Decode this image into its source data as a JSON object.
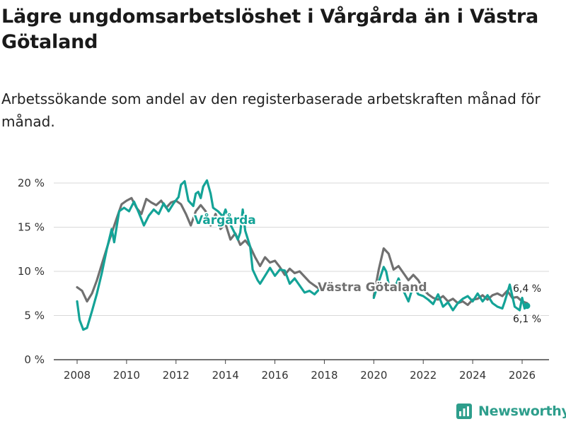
{
  "title": "Lägre ungdomsarbetslöshet i Vårgårda än i Västra Götaland",
  "subtitle": "Arbetssökande som andel av den registerbaserade arbetskraften månad för månad.",
  "brand": {
    "name": "Newsworthy"
  },
  "colors": {
    "vargarda": "#14a397",
    "vastra": "#707070",
    "grid": "#d9d9d9",
    "axis": "#444444"
  },
  "chart_data": {
    "type": "line",
    "title": "Lägre ungdomsarbetslöshet i Vårgårda än i Västra Götaland",
    "xlabel": "",
    "ylabel": "",
    "xlim": [
      2007.5,
      2026.8
    ],
    "ylim": [
      0,
      20
    ],
    "y_ticks": [
      0,
      5,
      10,
      15,
      20
    ],
    "y_tick_labels": [
      "0 %",
      "5 %",
      "10 %",
      "15 %",
      "20 %"
    ],
    "x_ticks": [
      2008,
      2010,
      2012,
      2014,
      2016,
      2018,
      2020,
      2022,
      2024,
      2026
    ],
    "x_tick_labels": [
      "2008",
      "2010",
      "2012",
      "2014",
      "2016",
      "2018",
      "2020",
      "2022",
      "2024",
      "2026"
    ],
    "grid": true,
    "series": [
      {
        "name": "Västra Götaland",
        "label": "Västra Götaland",
        "end_label": "6,4 %",
        "points": [
          [
            2008.0,
            8.2
          ],
          [
            2008.2,
            7.8
          ],
          [
            2008.4,
            6.6
          ],
          [
            2008.6,
            7.5
          ],
          [
            2008.8,
            9.0
          ],
          [
            2009.0,
            10.8
          ],
          [
            2009.3,
            13.5
          ],
          [
            2009.6,
            16.0
          ],
          [
            2009.8,
            17.6
          ],
          [
            2010.0,
            18.0
          ],
          [
            2010.2,
            18.3
          ],
          [
            2010.4,
            17.2
          ],
          [
            2010.6,
            16.5
          ],
          [
            2010.8,
            18.2
          ],
          [
            2011.0,
            17.8
          ],
          [
            2011.2,
            17.5
          ],
          [
            2011.4,
            18.0
          ],
          [
            2011.6,
            17.2
          ],
          [
            2011.8,
            17.8
          ],
          [
            2012.0,
            18.0
          ],
          [
            2012.2,
            17.6
          ],
          [
            2012.4,
            16.5
          ],
          [
            2012.6,
            15.2
          ],
          [
            2012.8,
            16.8
          ],
          [
            2013.0,
            17.5
          ],
          [
            2013.2,
            16.8
          ],
          [
            2013.4,
            15.2
          ],
          [
            2013.6,
            16.5
          ],
          [
            2013.8,
            14.8
          ],
          [
            2014.0,
            15.4
          ],
          [
            2014.2,
            13.6
          ],
          [
            2014.4,
            14.3
          ],
          [
            2014.6,
            13.0
          ],
          [
            2014.8,
            13.5
          ],
          [
            2015.0,
            12.8
          ],
          [
            2015.2,
            11.6
          ],
          [
            2015.4,
            10.6
          ],
          [
            2015.6,
            11.6
          ],
          [
            2015.8,
            11.0
          ],
          [
            2016.0,
            11.2
          ],
          [
            2016.2,
            10.5
          ],
          [
            2016.4,
            9.6
          ],
          [
            2016.6,
            10.3
          ],
          [
            2016.8,
            9.8
          ],
          [
            2017.0,
            10.0
          ],
          [
            2017.2,
            9.4
          ],
          [
            2017.4,
            8.8
          ],
          [
            2017.6,
            8.4
          ],
          [
            2017.8,
            8.0
          ]
        ]
      },
      {
        "name": "Västra Götaland (forts.)",
        "points": [
          [
            2020.0,
            7.2
          ],
          [
            2020.2,
            10.2
          ],
          [
            2020.4,
            12.6
          ],
          [
            2020.6,
            12.0
          ],
          [
            2020.8,
            10.2
          ],
          [
            2021.0,
            10.6
          ],
          [
            2021.2,
            9.8
          ],
          [
            2021.4,
            9.0
          ],
          [
            2021.6,
            9.6
          ],
          [
            2021.8,
            9.0
          ],
          [
            2022.0,
            8.0
          ],
          [
            2022.2,
            7.4
          ],
          [
            2022.4,
            7.0
          ],
          [
            2022.6,
            6.8
          ],
          [
            2022.8,
            7.2
          ],
          [
            2023.0,
            6.6
          ],
          [
            2023.2,
            6.9
          ],
          [
            2023.4,
            6.4
          ],
          [
            2023.6,
            6.6
          ],
          [
            2023.8,
            6.2
          ],
          [
            2024.0,
            6.8
          ],
          [
            2024.2,
            6.9
          ],
          [
            2024.4,
            7.3
          ],
          [
            2024.6,
            6.8
          ],
          [
            2024.8,
            7.3
          ],
          [
            2025.0,
            7.5
          ],
          [
            2025.2,
            7.2
          ],
          [
            2025.4,
            7.8
          ],
          [
            2025.6,
            7.0
          ],
          [
            2025.8,
            7.1
          ],
          [
            2026.0,
            6.6
          ],
          [
            2026.2,
            6.4
          ]
        ]
      },
      {
        "name": "Vårgårda",
        "label": "Vårgårda",
        "end_label": "6,1 %",
        "points": [
          [
            2008.0,
            6.6
          ],
          [
            2008.1,
            4.5
          ],
          [
            2008.25,
            3.4
          ],
          [
            2008.4,
            3.6
          ],
          [
            2008.6,
            5.5
          ],
          [
            2008.8,
            7.5
          ],
          [
            2009.0,
            9.8
          ],
          [
            2009.2,
            12.5
          ],
          [
            2009.4,
            14.8
          ],
          [
            2009.5,
            13.3
          ],
          [
            2009.7,
            16.8
          ],
          [
            2009.9,
            17.2
          ],
          [
            2010.1,
            16.8
          ],
          [
            2010.3,
            17.9
          ],
          [
            2010.5,
            16.6
          ],
          [
            2010.7,
            15.2
          ],
          [
            2010.9,
            16.3
          ],
          [
            2011.1,
            17.0
          ],
          [
            2011.3,
            16.5
          ],
          [
            2011.5,
            17.7
          ],
          [
            2011.7,
            16.8
          ],
          [
            2011.9,
            17.7
          ],
          [
            2012.1,
            18.4
          ],
          [
            2012.2,
            19.8
          ],
          [
            2012.35,
            20.2
          ],
          [
            2012.5,
            18.0
          ],
          [
            2012.7,
            17.4
          ],
          [
            2012.8,
            18.8
          ],
          [
            2012.9,
            19.0
          ],
          [
            2013.0,
            18.3
          ],
          [
            2013.1,
            19.6
          ],
          [
            2013.25,
            20.3
          ],
          [
            2013.4,
            18.8
          ],
          [
            2013.5,
            17.2
          ],
          [
            2013.7,
            16.8
          ],
          [
            2013.9,
            16.2
          ],
          [
            2014.0,
            17.0
          ],
          [
            2014.2,
            15.3
          ],
          [
            2014.4,
            14.2
          ],
          [
            2014.5,
            13.6
          ],
          [
            2014.6,
            14.4
          ],
          [
            2014.7,
            17.0
          ],
          [
            2014.8,
            14.6
          ],
          [
            2015.0,
            12.8
          ],
          [
            2015.1,
            10.2
          ],
          [
            2015.3,
            9.0
          ],
          [
            2015.4,
            8.6
          ],
          [
            2015.6,
            9.5
          ],
          [
            2015.8,
            10.4
          ],
          [
            2016.0,
            9.5
          ],
          [
            2016.2,
            10.2
          ],
          [
            2016.4,
            10.1
          ],
          [
            2016.6,
            8.6
          ],
          [
            2016.8,
            9.2
          ],
          [
            2017.0,
            8.4
          ],
          [
            2017.2,
            7.6
          ],
          [
            2017.4,
            7.8
          ],
          [
            2017.6,
            7.4
          ],
          [
            2017.8,
            8.0
          ]
        ]
      },
      {
        "name": "Vårgårda (forts.)",
        "points": [
          [
            2020.0,
            7.0
          ],
          [
            2020.2,
            8.8
          ],
          [
            2020.4,
            10.5
          ],
          [
            2020.5,
            10.0
          ],
          [
            2020.6,
            8.6
          ],
          [
            2020.8,
            7.8
          ],
          [
            2021.0,
            9.2
          ],
          [
            2021.2,
            7.8
          ],
          [
            2021.4,
            6.6
          ],
          [
            2021.6,
            8.4
          ],
          [
            2021.8,
            7.4
          ],
          [
            2022.0,
            7.2
          ],
          [
            2022.2,
            6.8
          ],
          [
            2022.4,
            6.3
          ],
          [
            2022.6,
            7.4
          ],
          [
            2022.8,
            6.0
          ],
          [
            2023.0,
            6.5
          ],
          [
            2023.2,
            5.6
          ],
          [
            2023.4,
            6.4
          ],
          [
            2023.6,
            6.9
          ],
          [
            2023.8,
            7.2
          ],
          [
            2024.0,
            6.6
          ],
          [
            2024.2,
            7.5
          ],
          [
            2024.4,
            6.6
          ],
          [
            2024.6,
            7.3
          ],
          [
            2024.8,
            6.4
          ],
          [
            2025.0,
            6.0
          ],
          [
            2025.2,
            5.8
          ],
          [
            2025.3,
            6.6
          ],
          [
            2025.5,
            8.5
          ],
          [
            2025.7,
            6.0
          ],
          [
            2025.9,
            5.6
          ],
          [
            2026.0,
            7.0
          ],
          [
            2026.1,
            5.8
          ],
          [
            2026.2,
            6.1
          ]
        ]
      }
    ]
  }
}
